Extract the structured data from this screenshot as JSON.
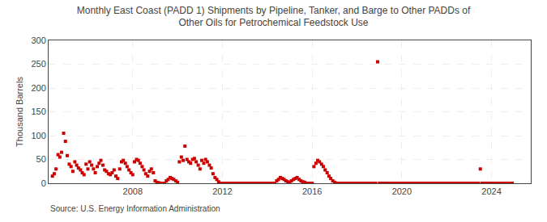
{
  "chart_data": {
    "type": "scatter",
    "title": "Monthly East Coast (PADD 1) Shipments by Pipeline, Tanker, and Barge to Other PADDs of\nOther Oils for Petrochemical Feedstock Use",
    "ylabel": "Thousand Barrels",
    "annotations": [
      "Source: U.S. Energy Information Administration"
    ],
    "color": "#cc0000",
    "marker": "square",
    "grid": true,
    "xlim": [
      2004.25,
      2025.75
    ],
    "xticks": [
      2008,
      2012,
      2016,
      2020,
      2024
    ],
    "ylim": [
      0,
      300
    ],
    "yticks": [
      0,
      50,
      100,
      150,
      200,
      250,
      300
    ],
    "x": [
      2004.42,
      2004.5,
      2004.58,
      2004.67,
      2004.75,
      2004.83,
      2004.92,
      2005.0,
      2005.08,
      2005.17,
      2005.25,
      2005.33,
      2005.42,
      2005.5,
      2005.58,
      2005.67,
      2005.75,
      2005.83,
      2005.92,
      2006.0,
      2006.08,
      2006.17,
      2006.25,
      2006.33,
      2006.42,
      2006.5,
      2006.58,
      2006.67,
      2006.75,
      2006.83,
      2006.92,
      2007.0,
      2007.08,
      2007.17,
      2007.25,
      2007.33,
      2007.42,
      2007.5,
      2007.58,
      2007.67,
      2007.75,
      2007.83,
      2007.92,
      2008.0,
      2008.08,
      2008.17,
      2008.25,
      2008.33,
      2008.42,
      2008.5,
      2008.58,
      2008.67,
      2008.75,
      2008.83,
      2008.92,
      2009.0,
      2009.08,
      2009.17,
      2009.25,
      2009.33,
      2009.42,
      2009.5,
      2009.58,
      2009.67,
      2009.75,
      2009.83,
      2009.92,
      2010.0,
      2010.08,
      2010.17,
      2010.25,
      2010.33,
      2010.42,
      2010.5,
      2010.58,
      2010.67,
      2010.75,
      2010.83,
      2010.92,
      2011.0,
      2011.08,
      2011.17,
      2011.25,
      2011.33,
      2011.42,
      2011.5,
      2011.58,
      2011.67,
      2011.75,
      2011.83,
      2011.92,
      2012.0,
      2012.08,
      2012.17,
      2012.25,
      2012.33,
      2012.42,
      2012.5,
      2012.58,
      2012.67,
      2012.75,
      2012.83,
      2012.92,
      2013.0,
      2013.08,
      2013.17,
      2013.25,
      2013.33,
      2013.42,
      2013.5,
      2013.58,
      2013.67,
      2013.75,
      2013.83,
      2013.92,
      2014.0,
      2014.08,
      2014.17,
      2014.25,
      2014.33,
      2014.42,
      2014.5,
      2014.58,
      2014.67,
      2014.75,
      2014.83,
      2014.92,
      2015.0,
      2015.08,
      2015.17,
      2015.25,
      2015.33,
      2015.42,
      2015.5,
      2015.58,
      2015.67,
      2015.75,
      2015.83,
      2015.92,
      2016.0,
      2016.08,
      2016.17,
      2016.25,
      2016.33,
      2016.42,
      2016.5,
      2016.58,
      2016.67,
      2016.75,
      2016.83,
      2016.92,
      2017.0,
      2017.08,
      2017.17,
      2017.25,
      2017.33,
      2017.42,
      2017.5,
      2017.58,
      2017.67,
      2017.75,
      2017.83,
      2017.92,
      2018.0,
      2018.08,
      2018.17,
      2018.25,
      2018.33,
      2018.42,
      2018.5,
      2018.58,
      2018.67,
      2018.75,
      2018.83,
      2018.92,
      2019.0,
      2019.08,
      2019.17,
      2019.25,
      2019.33,
      2019.42,
      2019.5,
      2019.58,
      2019.67,
      2019.75,
      2019.83,
      2019.92,
      2020.0,
      2020.08,
      2020.17,
      2020.25,
      2020.33,
      2020.42,
      2020.5,
      2020.58,
      2020.67,
      2020.75,
      2020.83,
      2020.92,
      2021.0,
      2021.08,
      2021.17,
      2021.25,
      2021.33,
      2021.42,
      2021.5,
      2021.58,
      2021.67,
      2021.75,
      2021.83,
      2021.92,
      2022.0,
      2022.08,
      2022.17,
      2022.25,
      2022.33,
      2022.42,
      2022.5,
      2022.58,
      2022.67,
      2022.75,
      2022.83,
      2022.92,
      2023.0,
      2023.08,
      2023.17,
      2023.25,
      2023.33,
      2023.42,
      2023.5,
      2023.58,
      2023.67,
      2023.75,
      2023.83,
      2023.92,
      2024.0,
      2024.08,
      2024.17,
      2024.25,
      2024.33,
      2024.42,
      2024.5,
      2024.58,
      2024.67,
      2024.75,
      2024.83,
      2024.92
    ],
    "values": [
      15,
      20,
      30,
      60,
      55,
      65,
      105,
      88,
      58,
      40,
      35,
      25,
      45,
      38,
      32,
      28,
      22,
      18,
      40,
      30,
      45,
      38,
      30,
      22,
      35,
      42,
      48,
      38,
      28,
      25,
      20,
      18,
      22,
      28,
      15,
      10,
      30,
      45,
      48,
      42,
      35,
      28,
      22,
      18,
      45,
      50,
      48,
      42,
      35,
      28,
      20,
      15,
      25,
      30,
      22,
      5,
      2,
      1,
      0,
      0,
      0,
      5,
      8,
      12,
      10,
      8,
      5,
      2,
      45,
      55,
      48,
      78,
      50,
      45,
      42,
      50,
      52,
      45,
      38,
      30,
      48,
      42,
      50,
      45,
      38,
      32,
      20,
      12,
      8,
      3,
      0,
      0,
      0,
      0,
      0,
      0,
      0,
      0,
      0,
      0,
      0,
      0,
      0,
      0,
      0,
      0,
      0,
      0,
      0,
      0,
      0,
      0,
      0,
      0,
      0,
      0,
      0,
      0,
      0,
      0,
      5,
      8,
      12,
      10,
      8,
      5,
      3,
      2,
      5,
      8,
      10,
      12,
      8,
      5,
      3,
      2,
      0,
      0,
      0,
      0,
      35,
      42,
      48,
      45,
      40,
      35,
      28,
      22,
      15,
      10,
      5,
      2,
      0,
      0,
      0,
      0,
      0,
      0,
      0,
      0,
      0,
      0,
      0,
      0,
      0,
      0,
      0,
      0,
      0,
      0,
      0,
      0,
      0,
      0,
      255,
      0,
      0,
      0,
      0,
      0,
      0,
      0,
      0,
      0,
      0,
      0,
      0,
      0,
      0,
      0,
      0,
      0,
      0,
      0,
      0,
      0,
      0,
      0,
      0,
      0,
      0,
      0,
      0,
      0,
      0,
      0,
      0,
      0,
      0,
      0,
      0,
      0,
      0,
      0,
      0,
      0,
      0,
      0,
      0,
      0,
      0,
      0,
      0,
      0,
      0,
      0,
      0,
      0,
      0,
      30,
      0,
      0,
      0,
      0,
      0,
      0,
      0,
      0,
      0,
      0,
      0,
      0,
      0,
      0,
      0,
      0,
      0
    ]
  }
}
